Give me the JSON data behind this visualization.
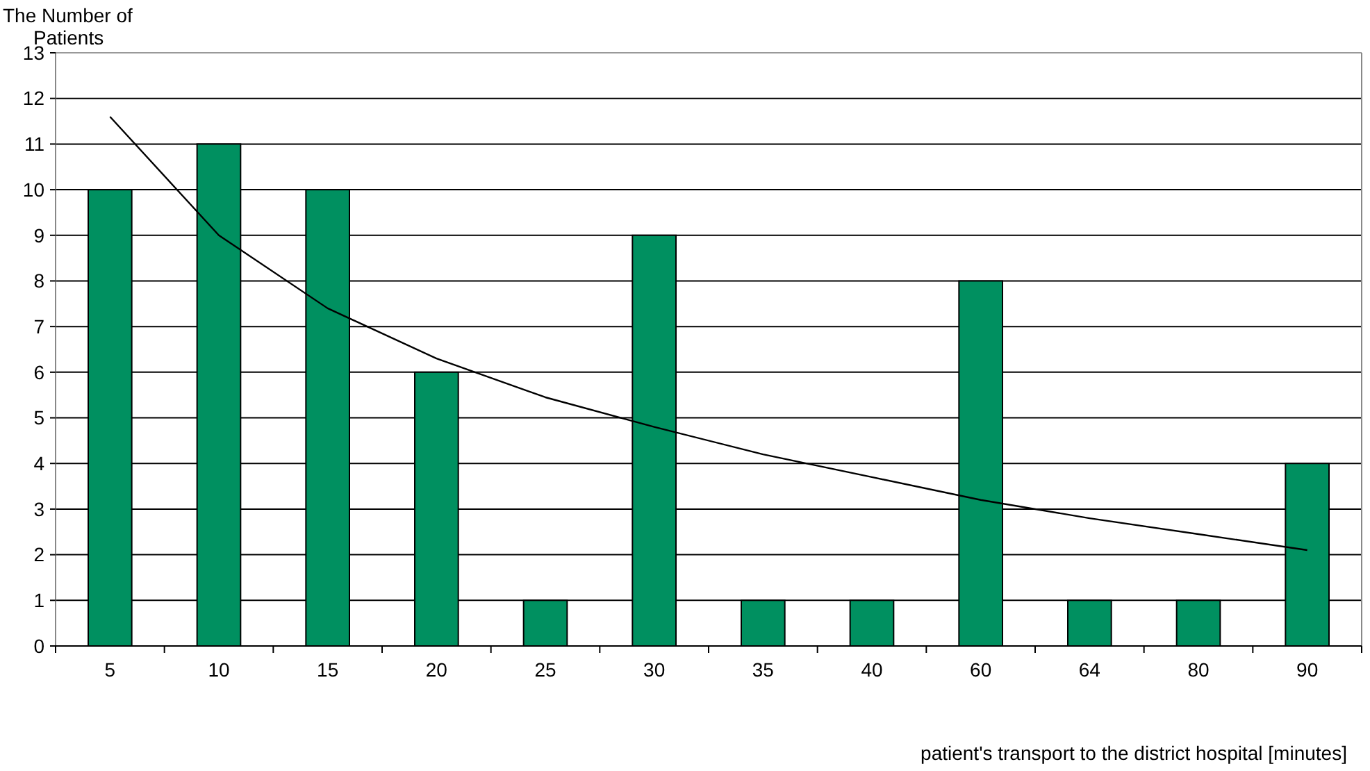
{
  "chart_data": {
    "type": "bar",
    "ylabel": "The Number of Patients",
    "xlabel": "patient's transport to the district hospital  [minutes]",
    "categories": [
      "5",
      "10",
      "15",
      "20",
      "25",
      "30",
      "35",
      "40",
      "60",
      "64",
      "80",
      "90"
    ],
    "series": [
      {
        "color": "#009060",
        "values": [
          10,
          11,
          10,
          6,
          1,
          9,
          1,
          1,
          8,
          1,
          1,
          4
        ]
      },
      {
        "type": "line",
        "color": "#000000",
        "values": [
          11.6,
          9.0,
          7.4,
          6.3,
          5.45,
          4.8,
          4.2,
          3.7,
          3.2,
          2.8,
          2.45,
          2.1
        ]
      }
    ],
    "ylim": [
      0,
      13
    ],
    "yticks": [
      0,
      1,
      2,
      3,
      4,
      5,
      6,
      7,
      8,
      9,
      10,
      11,
      12,
      13
    ],
    "grid": "y",
    "marker": "none",
    "line_style": "solid"
  }
}
